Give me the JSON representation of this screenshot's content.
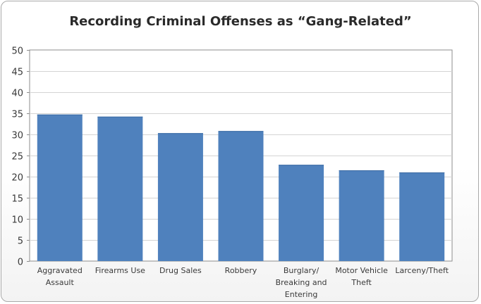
{
  "chart_data": {
    "type": "bar",
    "title": "Recording Criminal Offenses as “Gang-Related”",
    "xlabel": "",
    "ylabel": "",
    "categories": [
      [
        "Aggravated",
        "Assault"
      ],
      [
        "Firearms Use"
      ],
      [
        "Drug Sales"
      ],
      [
        "Robbery"
      ],
      [
        "Burglary/",
        "Breaking and",
        "Entering"
      ],
      [
        "Motor Vehicle",
        "Theft"
      ],
      [
        "Larceny/Theft"
      ]
    ],
    "values": [
      34.7,
      34.2,
      30.3,
      30.8,
      22.8,
      21.5,
      21.0
    ],
    "ylim": [
      0,
      50
    ],
    "yticks": [
      0,
      5,
      10,
      15,
      20,
      25,
      30,
      35,
      40,
      45,
      50
    ],
    "grid": true,
    "legend": "none",
    "bar_color": "#4f81bd"
  }
}
